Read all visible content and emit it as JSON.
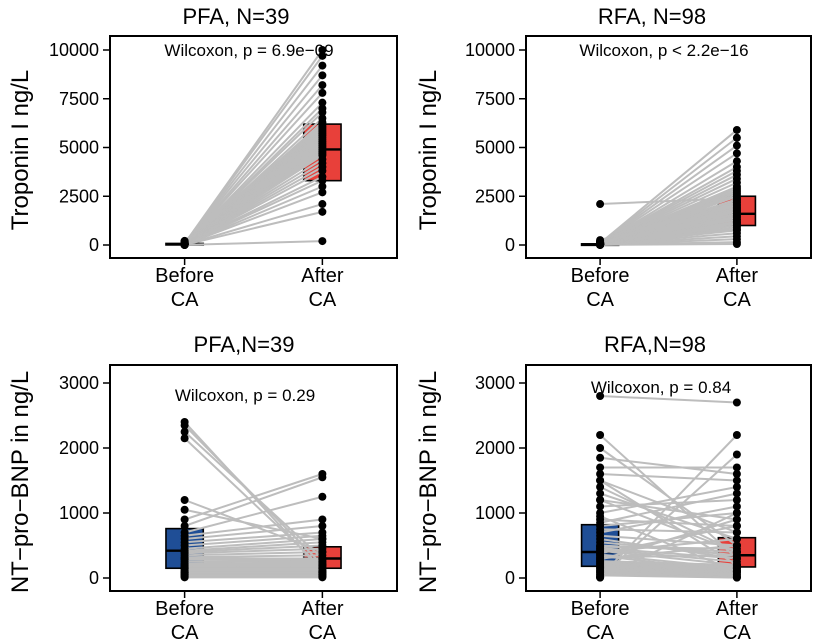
{
  "colors": {
    "before": "#1f4e96",
    "after": "#e8403a",
    "line": "#bdbdbd",
    "point": "#000000"
  },
  "chart_data": [
    {
      "type": "box",
      "title": "PFA, N=39",
      "ylabel": "Troponin I ng/L",
      "ylim": [
        0,
        10000
      ],
      "yticks": [
        "0",
        "2500",
        "5000",
        "7500",
        "10000"
      ],
      "categories": [
        "Before\nCA",
        "After\nCA"
      ],
      "annotation": "Wilcoxon, p = 6.9e−09",
      "boxes": [
        {
          "group": "Before CA",
          "q1": 20,
          "median": 40,
          "q3": 80
        },
        {
          "group": "After CA",
          "q1": 3300,
          "median": 4900,
          "q3": 6200
        }
      ],
      "pairs_before": [
        5,
        10,
        15,
        20,
        20,
        25,
        30,
        30,
        35,
        40,
        40,
        45,
        50,
        50,
        55,
        60,
        60,
        70,
        80,
        90,
        100,
        110,
        120,
        130,
        150,
        170,
        190,
        210,
        0,
        5,
        10,
        15,
        20,
        30,
        40,
        50,
        60,
        70,
        80
      ],
      "pairs_after": [
        200,
        1700,
        2100,
        2700,
        3000,
        3300,
        3500,
        3800,
        4000,
        4200,
        4400,
        4600,
        4700,
        4800,
        4900,
        5000,
        5100,
        5200,
        5300,
        5400,
        5500,
        5600,
        5700,
        5800,
        5900,
        6000,
        6100,
        6200,
        6300,
        6500,
        6800,
        7000,
        7300,
        7800,
        8200,
        8700,
        9200,
        9700,
        10000
      ]
    },
    {
      "type": "box",
      "title": "RFA, N=98",
      "ylabel": "Troponin I ng/L",
      "ylim": [
        0,
        10000
      ],
      "yticks": [
        "0",
        "2500",
        "5000",
        "7500",
        "10000"
      ],
      "categories": [
        "Before\nCA",
        "After\nCA"
      ],
      "annotation": "Wilcoxon, p < 2.2e−16",
      "boxes": [
        {
          "group": "Before CA",
          "q1": 10,
          "median": 30,
          "q3": 60
        },
        {
          "group": "After CA",
          "q1": 1000,
          "median": 1600,
          "q3": 2500
        }
      ],
      "pairs_before": [
        5,
        10,
        15,
        20,
        25,
        30,
        35,
        40,
        45,
        50,
        55,
        60,
        65,
        70,
        80,
        90,
        100,
        120,
        150,
        200,
        250,
        2100,
        5,
        10,
        15,
        20,
        25,
        30,
        35,
        40,
        45,
        50,
        55,
        60,
        65,
        70,
        80,
        90,
        100,
        110,
        120,
        130,
        5,
        10,
        15,
        20,
        25,
        30,
        35,
        40
      ],
      "pairs_after": [
        50,
        150,
        300,
        450,
        600,
        750,
        900,
        1000,
        1100,
        1200,
        1300,
        1400,
        1500,
        1600,
        1700,
        1800,
        1900,
        2000,
        2100,
        2200,
        2300,
        2400,
        2500,
        2600,
        2700,
        2800,
        2900,
        3000,
        3200,
        3400,
        3600,
        3800,
        4000,
        4300,
        4700,
        5100,
        5500,
        5900,
        800,
        1000,
        1150,
        1300,
        1450,
        1600,
        1750,
        1900,
        2050,
        2200,
        2350,
        2500
      ]
    },
    {
      "type": "box",
      "title": "PFA,N=39",
      "ylabel": "NT−pro−BNP in ng/L",
      "ylim": [
        0,
        3000
      ],
      "yticks": [
        "0",
        "1000",
        "2000",
        "3000"
      ],
      "categories": [
        "Before\nCA",
        "After\nCA"
      ],
      "annotation": "Wilcoxon, p = 0.29",
      "boxes": [
        {
          "group": "Before CA",
          "q1": 150,
          "median": 420,
          "q3": 760
        },
        {
          "group": "After CA",
          "q1": 150,
          "median": 300,
          "q3": 480
        }
      ],
      "pairs_before": [
        2400,
        2350,
        2250,
        2150,
        1200,
        1050,
        900,
        800,
        700,
        650,
        600,
        550,
        500,
        450,
        420,
        400,
        380,
        350,
        320,
        300,
        280,
        250,
        220,
        200,
        180,
        160,
        150,
        140,
        120,
        100,
        90,
        80,
        70,
        60,
        50,
        40,
        30,
        20,
        10
      ],
      "pairs_after": [
        100,
        200,
        300,
        150,
        400,
        600,
        1600,
        1550,
        1250,
        900,
        800,
        700,
        650,
        600,
        550,
        500,
        450,
        400,
        350,
        300,
        280,
        260,
        240,
        220,
        200,
        180,
        160,
        140,
        120,
        100,
        90,
        80,
        70,
        60,
        50,
        40,
        30,
        20,
        10
      ]
    },
    {
      "type": "box",
      "title": "RFA,N=98",
      "ylabel": "NT−pro−BNP in ng/L",
      "ylim": [
        0,
        3000
      ],
      "yticks": [
        "0",
        "1000",
        "2000",
        "3000"
      ],
      "categories": [
        "Before\nCA",
        "After\nCA"
      ],
      "annotation": "Wilcoxon, p = 0.84",
      "boxes": [
        {
          "group": "Before CA",
          "q1": 180,
          "median": 400,
          "q3": 820
        },
        {
          "group": "After CA",
          "q1": 170,
          "median": 350,
          "q3": 620
        }
      ],
      "pairs_before": [
        2800,
        2200,
        2000,
        1850,
        1700,
        1600,
        1500,
        1400,
        1300,
        1200,
        1100,
        1000,
        950,
        900,
        850,
        800,
        750,
        700,
        650,
        600,
        550,
        500,
        480,
        460,
        440,
        420,
        400,
        380,
        360,
        340,
        320,
        300,
        280,
        260,
        240,
        220,
        200,
        180,
        160,
        140,
        120,
        100,
        80,
        60,
        40,
        20,
        10,
        5,
        1500,
        1200
      ],
      "pairs_after": [
        2700,
        300,
        500,
        1600,
        1700,
        1500,
        200,
        400,
        600,
        900,
        1200,
        1400,
        100,
        800,
        1300,
        1000,
        700,
        1100,
        500,
        300,
        350,
        400,
        450,
        300,
        250,
        200,
        600,
        800,
        150,
        100,
        350,
        500,
        900,
        200,
        180,
        160,
        140,
        120,
        100,
        80,
        60,
        40,
        20,
        10,
        5,
        2200,
        1900,
        1000,
        700,
        400
      ]
    }
  ]
}
